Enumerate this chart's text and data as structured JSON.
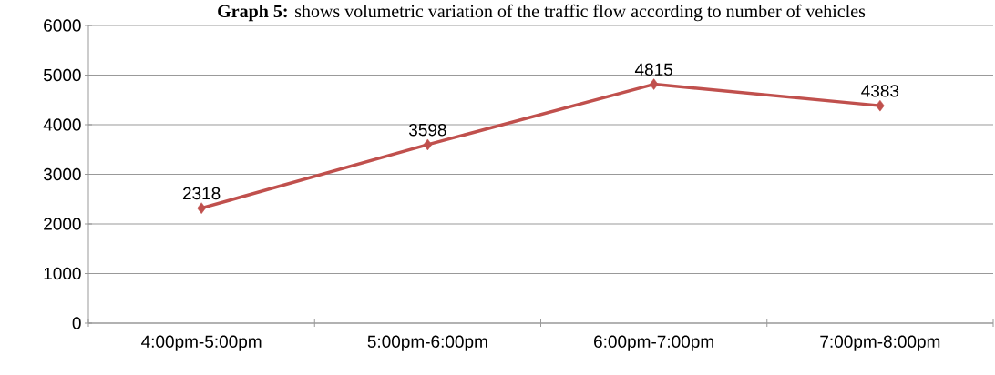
{
  "chart_data": {
    "type": "line",
    "title": "**Graph 5:** shows volumetric variation of the traffic flow according to number of vehicles",
    "categories": [
      "4:00pm-5:00pm",
      "5:00pm-6:00pm",
      "6:00pm-7:00pm",
      "7:00pm-8:00pm"
    ],
    "values": [
      2318,
      3598,
      4815,
      4383
    ],
    "color": "#c0504d",
    "marker": "diamond",
    "ylim": [
      0,
      6000
    ],
    "yticks": [
      0,
      1000,
      2000,
      3000,
      4000,
      5000,
      6000
    ],
    "grid": "y",
    "data_labels": true
  }
}
